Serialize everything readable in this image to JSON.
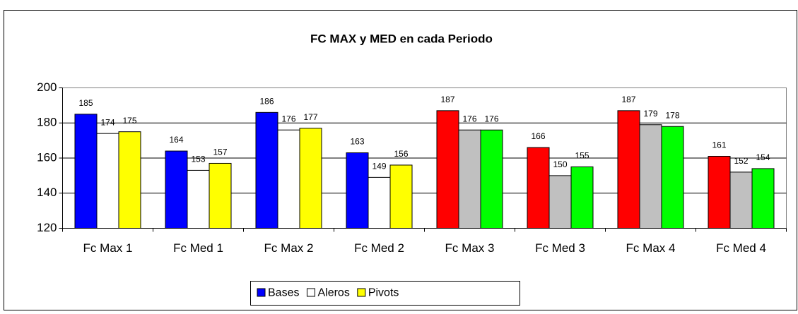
{
  "chart_data": {
    "type": "bar",
    "title": "FC MAX y MED en cada Periodo",
    "categories": [
      "Fc Max 1",
      "Fc Med 1",
      "Fc Max 2",
      "Fc Med 2",
      "Fc Max 3",
      "Fc Med 3",
      "Fc Max 4",
      "Fc Med 4"
    ],
    "series": [
      {
        "name": "Bases",
        "color": "#0000ff",
        "colors": [
          "#0000ff",
          "#0000ff",
          "#0000ff",
          "#0000ff",
          "#ff0000",
          "#ff0000",
          "#ff0000",
          "#ff0000"
        ],
        "values": [
          185,
          164,
          186,
          163,
          187,
          166,
          187,
          161
        ]
      },
      {
        "name": "Aleros",
        "color": "#ffffff",
        "colors": [
          "#ffffff",
          "#ffffff",
          "#ffffff",
          "#ffffff",
          "#c0c0c0",
          "#c0c0c0",
          "#c0c0c0",
          "#c0c0c0"
        ],
        "values": [
          174,
          153,
          176,
          149,
          176,
          150,
          179,
          152
        ]
      },
      {
        "name": "Pivots",
        "color": "#ffff00",
        "colors": [
          "#ffff00",
          "#ffff00",
          "#ffff00",
          "#ffff00",
          "#00ff00",
          "#00ff00",
          "#00ff00",
          "#00ff00"
        ],
        "values": [
          175,
          157,
          177,
          156,
          176,
          155,
          178,
          154
        ]
      }
    ],
    "ylim": [
      120,
      200
    ],
    "yticks": [
      120,
      140,
      160,
      180,
      200
    ],
    "grid": true,
    "legend": "bottom"
  }
}
